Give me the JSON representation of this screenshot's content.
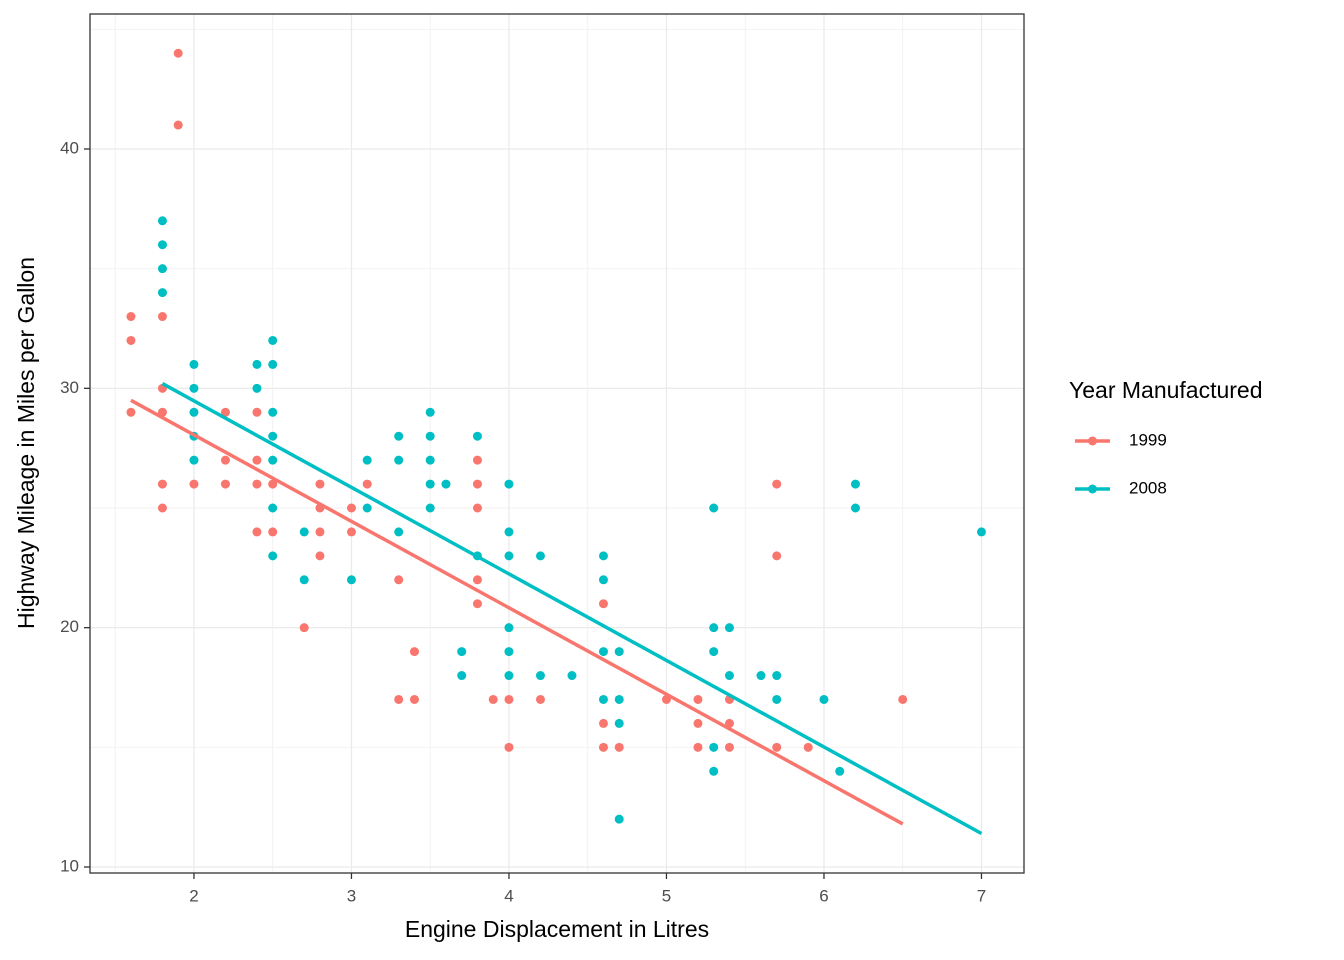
{
  "chart_data": {
    "type": "scatter",
    "x_label": "Engine Displacement in Litres",
    "y_label": "Highway Mileage in Miles per Gallon",
    "legend_title": "Year Manufactured",
    "legend": "right",
    "grid": true,
    "xlim": [
      1.34,
      7.27
    ],
    "ylim": [
      9.75,
      45.64
    ],
    "xticks": [
      2,
      3,
      4,
      5,
      6,
      7
    ],
    "yticks": [
      10,
      20,
      30,
      40
    ],
    "x_minor_grid": [
      1.5,
      2.5,
      3.5,
      4.5,
      5.5,
      6.5
    ],
    "y_minor_grid": [
      15,
      25,
      35,
      45
    ],
    "series": [
      {
        "name": "1999",
        "color": "#F8766D",
        "x": [
          1.6,
          1.6,
          1.6,
          1.8,
          1.8,
          1.8,
          1.8,
          1.8,
          1.9,
          1.9,
          2.0,
          2.2,
          2.2,
          2.2,
          2.4,
          2.4,
          2.4,
          2.4,
          2.5,
          2.5,
          2.7,
          2.8,
          2.8,
          2.8,
          2.8,
          3.0,
          3.0,
          3.1,
          3.3,
          3.3,
          3.4,
          3.4,
          3.8,
          3.8,
          3.8,
          3.8,
          3.8,
          3.9,
          4.0,
          4.0,
          4.2,
          4.6,
          4.6,
          4.6,
          4.7,
          5.0,
          5.2,
          5.2,
          5.2,
          5.4,
          5.4,
          5.4,
          5.7,
          5.7,
          5.7,
          5.9,
          6.5
        ],
        "values": [
          33,
          32,
          29,
          33,
          30,
          29,
          26,
          25,
          44,
          41,
          26,
          29,
          27,
          26,
          29,
          27,
          26,
          24,
          26,
          24,
          20,
          26,
          25,
          24,
          23,
          25,
          24,
          26,
          22,
          17,
          19,
          17,
          27,
          26,
          25,
          22,
          21,
          17,
          17,
          15,
          17,
          21,
          16,
          15,
          15,
          17,
          17,
          16,
          15,
          17,
          16,
          15,
          26,
          23,
          15,
          15,
          17
        ],
        "trend_x": [
          1.6,
          6.5
        ],
        "trend_y": [
          29.5,
          11.8
        ]
      },
      {
        "name": "2008",
        "color": "#00BFC4",
        "x": [
          1.8,
          1.8,
          1.8,
          1.8,
          2.0,
          2.0,
          2.0,
          2.0,
          2.0,
          2.4,
          2.4,
          2.5,
          2.5,
          2.5,
          2.5,
          2.5,
          2.5,
          2.5,
          2.7,
          2.7,
          3.0,
          3.1,
          3.1,
          3.3,
          3.3,
          3.3,
          3.5,
          3.5,
          3.5,
          3.5,
          3.5,
          3.6,
          3.7,
          3.7,
          3.8,
          3.8,
          4.0,
          4.0,
          4.0,
          4.0,
          4.0,
          4.0,
          4.2,
          4.2,
          4.4,
          4.6,
          4.6,
          4.6,
          4.6,
          4.7,
          4.7,
          4.7,
          4.7,
          5.3,
          5.3,
          5.3,
          5.3,
          5.3,
          5.4,
          5.4,
          5.6,
          5.7,
          5.7,
          6.0,
          6.1,
          6.2,
          6.2,
          7.0
        ],
        "values": [
          37,
          36,
          35,
          34,
          31,
          30,
          29,
          28,
          27,
          31,
          30,
          32,
          31,
          29,
          28,
          27,
          25,
          23,
          24,
          22,
          22,
          27,
          25,
          28,
          27,
          24,
          29,
          28,
          27,
          26,
          25,
          26,
          19,
          18,
          28,
          23,
          26,
          24,
          23,
          20,
          19,
          18,
          23,
          18,
          18,
          23,
          22,
          19,
          17,
          19,
          17,
          16,
          12,
          25,
          20,
          19,
          15,
          14,
          20,
          18,
          18,
          18,
          17,
          17,
          14,
          26,
          25,
          24
        ],
        "trend_x": [
          1.8,
          7.0
        ],
        "trend_y": [
          30.2,
          11.4
        ]
      }
    ]
  }
}
